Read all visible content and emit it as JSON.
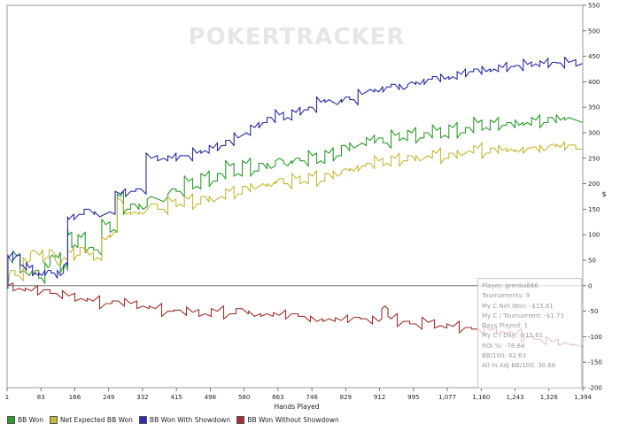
{
  "chart_data": {
    "type": "line",
    "watermark": "POKERTRACKER",
    "xlabel": "Hands Played",
    "ylabel": "$",
    "xlim": [
      1,
      1394
    ],
    "ylim": [
      -200,
      550
    ],
    "x_ticks": [
      "1",
      "83",
      "166",
      "249",
      "332",
      "415",
      "498",
      "580",
      "663",
      "746",
      "829",
      "912",
      "995",
      "1,077",
      "1,160",
      "1,243",
      "1,326",
      "1,394"
    ],
    "y_ticks": [
      550,
      500,
      450,
      400,
      350,
      300,
      250,
      200,
      150,
      100,
      50,
      0,
      -50,
      -100,
      -150,
      -200
    ],
    "series": [
      {
        "name": "BB Won",
        "color": "#2aa02a",
        "points": [
          [
            1,
            0
          ],
          [
            5,
            55
          ],
          [
            25,
            58
          ],
          [
            40,
            30
          ],
          [
            55,
            20
          ],
          [
            70,
            30
          ],
          [
            85,
            15
          ],
          [
            100,
            35
          ],
          [
            110,
            60
          ],
          [
            125,
            55
          ],
          [
            135,
            35
          ],
          [
            145,
            40
          ],
          [
            150,
            100
          ],
          [
            165,
            80
          ],
          [
            180,
            95
          ],
          [
            200,
            75
          ],
          [
            220,
            70
          ],
          [
            240,
            120
          ],
          [
            260,
            110
          ],
          [
            275,
            175
          ],
          [
            290,
            150
          ],
          [
            310,
            160
          ],
          [
            330,
            150
          ],
          [
            350,
            175
          ],
          [
            380,
            165
          ],
          [
            400,
            190
          ],
          [
            420,
            185
          ],
          [
            440,
            205
          ],
          [
            460,
            195
          ],
          [
            480,
            215
          ],
          [
            500,
            205
          ],
          [
            520,
            220
          ],
          [
            540,
            235
          ],
          [
            560,
            220
          ],
          [
            580,
            240
          ],
          [
            600,
            225
          ],
          [
            620,
            240
          ],
          [
            640,
            230
          ],
          [
            660,
            250
          ],
          [
            680,
            235
          ],
          [
            700,
            250
          ],
          [
            720,
            245
          ],
          [
            740,
            255
          ],
          [
            760,
            245
          ],
          [
            780,
            260
          ],
          [
            800,
            255
          ],
          [
            820,
            275
          ],
          [
            840,
            270
          ],
          [
            860,
            280
          ],
          [
            880,
            285
          ],
          [
            900,
            290
          ],
          [
            920,
            280
          ],
          [
            940,
            295
          ],
          [
            960,
            290
          ],
          [
            980,
            300
          ],
          [
            1000,
            290
          ],
          [
            1020,
            300
          ],
          [
            1040,
            305
          ],
          [
            1060,
            295
          ],
          [
            1080,
            310
          ],
          [
            1100,
            300
          ],
          [
            1120,
            310
          ],
          [
            1140,
            320
          ],
          [
            1160,
            310
          ],
          [
            1180,
            320
          ],
          [
            1200,
            315
          ],
          [
            1220,
            320
          ],
          [
            1240,
            315
          ],
          [
            1260,
            320
          ],
          [
            1280,
            325
          ],
          [
            1300,
            320
          ],
          [
            1320,
            330
          ],
          [
            1340,
            325
          ],
          [
            1360,
            330
          ],
          [
            1394,
            320
          ]
        ]
      },
      {
        "name": "Net Expected BB Won",
        "color": "#c8b832",
        "points": [
          [
            1,
            0
          ],
          [
            10,
            30
          ],
          [
            30,
            20
          ],
          [
            50,
            45
          ],
          [
            65,
            70
          ],
          [
            80,
            60
          ],
          [
            95,
            55
          ],
          [
            110,
            70
          ],
          [
            125,
            40
          ],
          [
            140,
            55
          ],
          [
            155,
            65
          ],
          [
            170,
            60
          ],
          [
            185,
            75
          ],
          [
            200,
            60
          ],
          [
            220,
            55
          ],
          [
            240,
            90
          ],
          [
            260,
            105
          ],
          [
            275,
            170
          ],
          [
            290,
            140
          ],
          [
            310,
            145
          ],
          [
            330,
            140
          ],
          [
            350,
            160
          ],
          [
            380,
            150
          ],
          [
            400,
            165
          ],
          [
            420,
            160
          ],
          [
            440,
            170
          ],
          [
            460,
            160
          ],
          [
            480,
            175
          ],
          [
            500,
            165
          ],
          [
            520,
            175
          ],
          [
            540,
            185
          ],
          [
            560,
            180
          ],
          [
            580,
            195
          ],
          [
            600,
            190
          ],
          [
            620,
            200
          ],
          [
            640,
            195
          ],
          [
            660,
            210
          ],
          [
            680,
            200
          ],
          [
            700,
            210
          ],
          [
            720,
            205
          ],
          [
            740,
            215
          ],
          [
            760,
            205
          ],
          [
            780,
            220
          ],
          [
            800,
            215
          ],
          [
            820,
            230
          ],
          [
            840,
            225
          ],
          [
            860,
            235
          ],
          [
            880,
            240
          ],
          [
            900,
            245
          ],
          [
            920,
            240
          ],
          [
            940,
            250
          ],
          [
            960,
            245
          ],
          [
            980,
            255
          ],
          [
            1000,
            245
          ],
          [
            1020,
            255
          ],
          [
            1040,
            260
          ],
          [
            1060,
            250
          ],
          [
            1080,
            260
          ],
          [
            1100,
            255
          ],
          [
            1120,
            265
          ],
          [
            1140,
            270
          ],
          [
            1160,
            260
          ],
          [
            1180,
            270
          ],
          [
            1200,
            265
          ],
          [
            1220,
            268
          ],
          [
            1240,
            262
          ],
          [
            1260,
            270
          ],
          [
            1280,
            272
          ],
          [
            1300,
            265
          ],
          [
            1320,
            278
          ],
          [
            1340,
            272
          ],
          [
            1360,
            276
          ],
          [
            1394,
            268
          ]
        ]
      },
      {
        "name": "BB Won With Showdown",
        "color": "#2a2ab0",
        "points": [
          [
            1,
            0
          ],
          [
            5,
            55
          ],
          [
            25,
            60
          ],
          [
            40,
            40
          ],
          [
            55,
            35
          ],
          [
            70,
            25
          ],
          [
            85,
            20
          ],
          [
            100,
            30
          ],
          [
            115,
            25
          ],
          [
            130,
            20
          ],
          [
            145,
            45
          ],
          [
            150,
            130
          ],
          [
            175,
            140
          ],
          [
            200,
            150
          ],
          [
            225,
            135
          ],
          [
            250,
            145
          ],
          [
            275,
            180
          ],
          [
            300,
            185
          ],
          [
            325,
            190
          ],
          [
            350,
            250
          ],
          [
            380,
            250
          ],
          [
            400,
            250
          ],
          [
            420,
            255
          ],
          [
            440,
            255
          ],
          [
            460,
            260
          ],
          [
            480,
            265
          ],
          [
            500,
            270
          ],
          [
            520,
            275
          ],
          [
            540,
            285
          ],
          [
            560,
            290
          ],
          [
            580,
            300
          ],
          [
            600,
            310
          ],
          [
            620,
            320
          ],
          [
            640,
            330
          ],
          [
            660,
            335
          ],
          [
            680,
            330
          ],
          [
            700,
            340
          ],
          [
            720,
            345
          ],
          [
            740,
            350
          ],
          [
            760,
            360
          ],
          [
            780,
            365
          ],
          [
            800,
            355
          ],
          [
            820,
            370
          ],
          [
            840,
            365
          ],
          [
            860,
            375
          ],
          [
            880,
            385
          ],
          [
            900,
            380
          ],
          [
            920,
            390
          ],
          [
            940,
            395
          ],
          [
            960,
            385
          ],
          [
            980,
            400
          ],
          [
            1000,
            395
          ],
          [
            1020,
            405
          ],
          [
            1040,
            410
          ],
          [
            1060,
            405
          ],
          [
            1080,
            410
          ],
          [
            1100,
            415
          ],
          [
            1120,
            420
          ],
          [
            1140,
            425
          ],
          [
            1160,
            420
          ],
          [
            1180,
            425
          ],
          [
            1200,
            428
          ],
          [
            1220,
            430
          ],
          [
            1240,
            432
          ],
          [
            1260,
            434
          ],
          [
            1280,
            435
          ],
          [
            1300,
            436
          ],
          [
            1320,
            438
          ],
          [
            1340,
            437
          ],
          [
            1360,
            438
          ],
          [
            1394,
            436
          ]
        ]
      },
      {
        "name": "BB Won Without Showdown",
        "color": "#a83030",
        "points": [
          [
            1,
            0
          ],
          [
            30,
            -5
          ],
          [
            60,
            -10
          ],
          [
            90,
            -8
          ],
          [
            120,
            -15
          ],
          [
            150,
            -20
          ],
          [
            180,
            -25
          ],
          [
            210,
            -30
          ],
          [
            240,
            -35
          ],
          [
            270,
            -30
          ],
          [
            300,
            -35
          ],
          [
            330,
            -40
          ],
          [
            360,
            -45
          ],
          [
            390,
            -50
          ],
          [
            420,
            -48
          ],
          [
            450,
            -52
          ],
          [
            480,
            -55
          ],
          [
            510,
            -50
          ],
          [
            540,
            -55
          ],
          [
            570,
            -45
          ],
          [
            600,
            -60
          ],
          [
            630,
            -55
          ],
          [
            660,
            -58
          ],
          [
            690,
            -55
          ],
          [
            720,
            -60
          ],
          [
            750,
            -70
          ],
          [
            780,
            -65
          ],
          [
            810,
            -68
          ],
          [
            840,
            -62
          ],
          [
            870,
            -65
          ],
          [
            900,
            -70
          ],
          [
            915,
            -40
          ],
          [
            930,
            -65
          ],
          [
            960,
            -70
          ],
          [
            990,
            -75
          ],
          [
            1020,
            -72
          ],
          [
            1050,
            -78
          ],
          [
            1080,
            -80
          ],
          [
            1110,
            -82
          ],
          [
            1140,
            -85
          ],
          [
            1170,
            -88
          ],
          [
            1200,
            -90
          ],
          [
            1230,
            -95
          ],
          [
            1260,
            -100
          ],
          [
            1290,
            -105
          ],
          [
            1320,
            -110
          ],
          [
            1350,
            -112
          ],
          [
            1394,
            -120
          ]
        ]
      }
    ],
    "legend": [
      "BB Won",
      "Net Expected BB Won",
      "BB Won With Showdown",
      "BB Won Without Showdown"
    ]
  },
  "stats": [
    "Player: grenka666",
    "Tournaments: 9",
    "My C Net Won: -$15.61",
    "My C / Tournament: -$1.73",
    "Days Played: 1",
    "My C / Day: -$15.61",
    "ROI %: -78.84",
    "BB/100: 42.63",
    "All-In Adj BB/100: 30.68"
  ]
}
